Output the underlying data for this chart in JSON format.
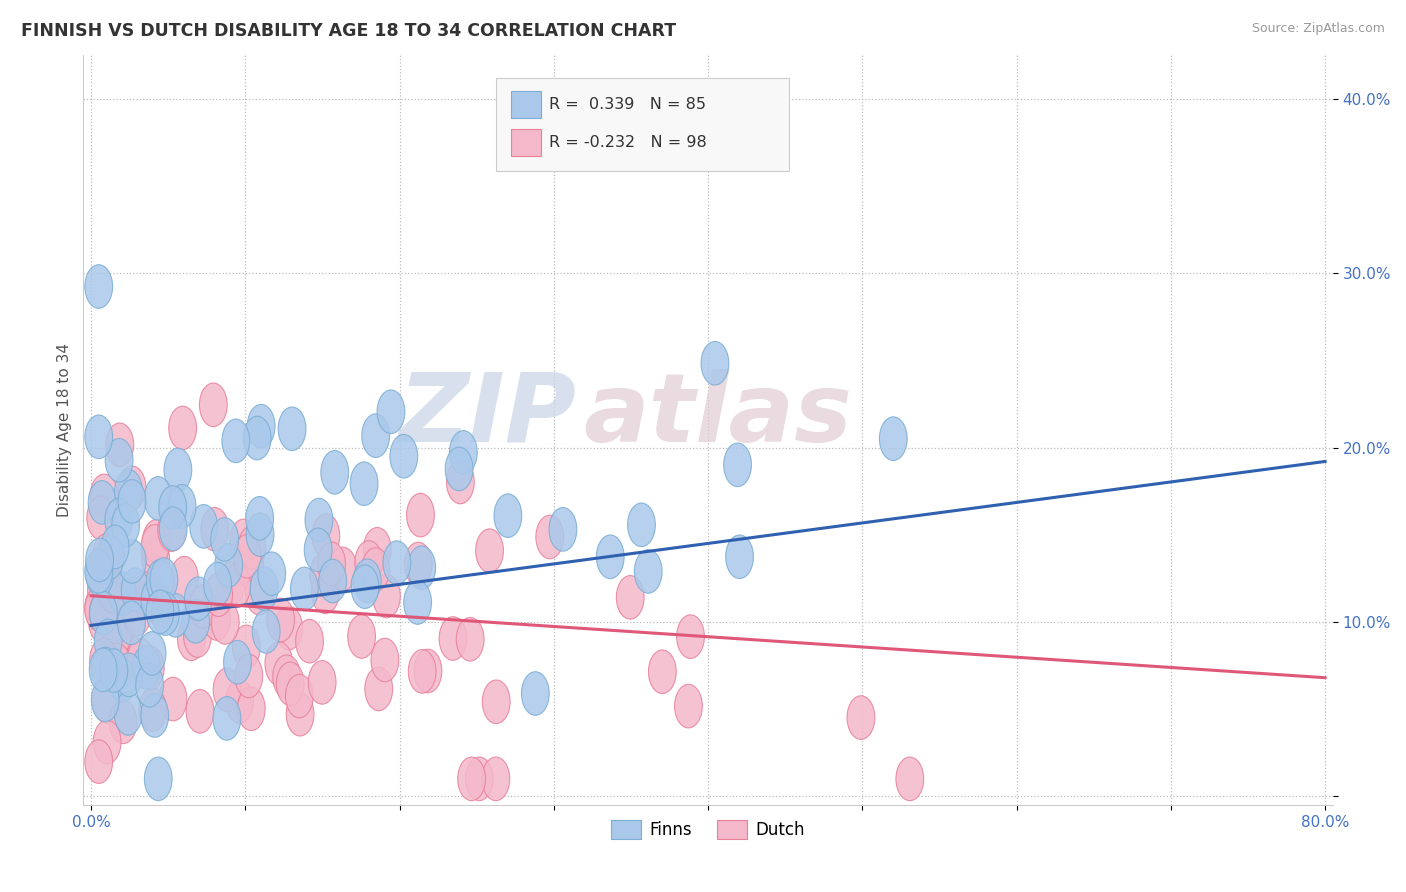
{
  "title": "FINNISH VS DUTCH DISABILITY AGE 18 TO 34 CORRELATION CHART",
  "source_text": "Source: ZipAtlas.com",
  "ylabel": "Disability Age 18 to 34",
  "xlim": [
    -0.005,
    0.805
  ],
  "ylim": [
    -0.005,
    0.425
  ],
  "xtick_positions": [
    0.0,
    0.1,
    0.2,
    0.3,
    0.4,
    0.5,
    0.6,
    0.7,
    0.8
  ],
  "xtick_labels": [
    "0.0%",
    "",
    "",
    "",
    "",
    "",
    "",
    "",
    "80.0%"
  ],
  "ytick_positions": [
    0.0,
    0.1,
    0.2,
    0.3,
    0.4
  ],
  "ytick_labels": [
    "",
    "10.0%",
    "20.0%",
    "30.0%",
    "40.0%"
  ],
  "legend_r_finn": "R =  0.339",
  "legend_n_finn": "N = 85",
  "legend_r_dutch": "R = -0.232",
  "legend_n_dutch": "N = 98",
  "finn_color": "#aac8ea",
  "dutch_color": "#f4b8cb",
  "finn_edge_color": "#7aaed4",
  "dutch_edge_color": "#e8809a",
  "finn_line_color": "#3060b0",
  "dutch_line_color": "#e05878",
  "background_color": "#ffffff",
  "finn_R": 0.339,
  "finn_N": 85,
  "dutch_R": -0.232,
  "dutch_N": 98,
  "finn_trend_x0": 0.0,
  "finn_trend_y0": 0.098,
  "finn_trend_x1": 0.8,
  "finn_trend_y1": 0.192,
  "dutch_trend_x0": 0.0,
  "dutch_trend_y0": 0.115,
  "dutch_trend_x1": 0.8,
  "dutch_trend_y1": 0.068
}
